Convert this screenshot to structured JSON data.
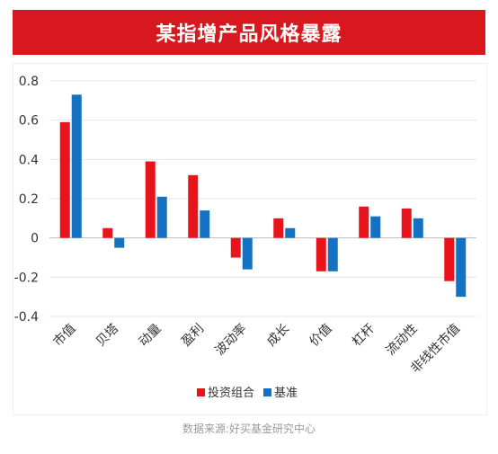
{
  "title": "某指增产品风格暴露",
  "source": "数据来源:好买基金研究中心",
  "colors": {
    "banner": "#d7191f",
    "portfolio": "#e8141c",
    "benchmark": "#1572c2"
  },
  "chart_data": {
    "type": "bar",
    "title": "某指增产品风格暴露",
    "categories": [
      "市值",
      "贝塔",
      "动量",
      "盈利",
      "波动率",
      "成长",
      "价值",
      "杠杆",
      "流动性",
      "非线性市值"
    ],
    "series": [
      {
        "name": "投资组合",
        "values": [
          0.59,
          0.05,
          0.39,
          0.32,
          -0.1,
          0.1,
          -0.17,
          0.16,
          0.15,
          -0.22
        ]
      },
      {
        "name": "基准",
        "values": [
          0.73,
          -0.05,
          0.21,
          0.14,
          -0.16,
          0.05,
          -0.17,
          0.11,
          0.1,
          -0.3
        ]
      }
    ],
    "ylim": [
      -0.4,
      0.8
    ],
    "yticks": [
      0.8,
      0.6,
      0.4,
      0.2,
      0,
      -0.2,
      -0.4
    ],
    "ytick_labels": [
      "0.8",
      "0.6",
      "0.4",
      "0.2",
      "0",
      "-0.2",
      "-0.4"
    ],
    "grid": true,
    "legend": "bottom"
  }
}
